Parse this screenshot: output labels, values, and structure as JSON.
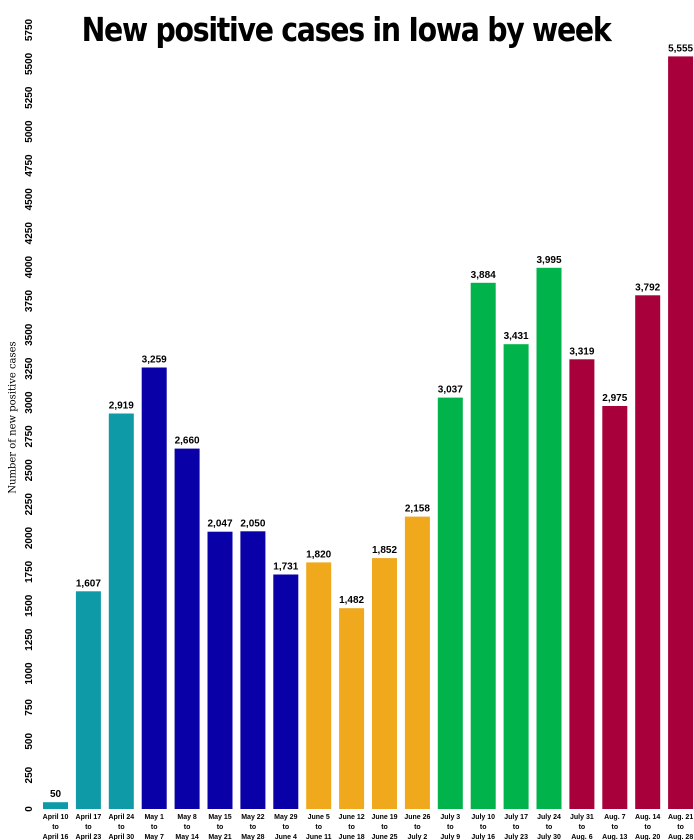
{
  "chart_data": {
    "type": "bar",
    "title": "New positive cases in Iowa by week",
    "ylabel": "Number of new positive cases",
    "xlabel": "",
    "ylim": [
      0,
      5750
    ],
    "ytick_step": 250,
    "grid": false,
    "legend": "none",
    "categories": [
      [
        "April 10",
        "to",
        "April 16"
      ],
      [
        "April 17",
        "to",
        "April 23"
      ],
      [
        "April 24",
        "to",
        "April 30"
      ],
      [
        "May 1",
        "to",
        "May 7"
      ],
      [
        "May 8",
        "to",
        "May 14"
      ],
      [
        "May 15",
        "to",
        "May 21"
      ],
      [
        "May 22",
        "to",
        "May 28"
      ],
      [
        "May 29",
        "to",
        "June 4"
      ],
      [
        "June 5",
        "to",
        "June 11"
      ],
      [
        "June 12",
        "to",
        "June 18"
      ],
      [
        "June 19",
        "to",
        "June 25"
      ],
      [
        "June 26",
        "to",
        "July 2"
      ],
      [
        "July 3",
        "to",
        "July 9"
      ],
      [
        "July 10",
        "to",
        "July 16"
      ],
      [
        "July 17",
        "to",
        "July 23"
      ],
      [
        "July 24",
        "to",
        "July 30"
      ],
      [
        "July 31",
        "to",
        "Aug. 6"
      ],
      [
        "Aug. 7",
        "to",
        "Aug. 13"
      ],
      [
        "Aug. 14",
        "to",
        "Aug. 20"
      ],
      [
        "Aug. 21",
        "to",
        "Aug. 28"
      ]
    ],
    "values": [
      50,
      1607,
      2919,
      3259,
      2660,
      2047,
      2050,
      1731,
      1820,
      1482,
      1852,
      2158,
      3037,
      3884,
      3431,
      3995,
      3319,
      2975,
      3792,
      5555
    ],
    "value_labels": [
      "50",
      "1,607",
      "2,919",
      "3,259",
      "2,660",
      "2,047",
      "2,050",
      "1,731",
      "1,820",
      "1,482",
      "1,852",
      "2,158",
      "3,037",
      "3,884",
      "3,431",
      "3,995",
      "3,319",
      "2,975",
      "3,792",
      "5,555"
    ],
    "bar_colors": [
      "#0e9aa7",
      "#0e9aa7",
      "#0e9aa7",
      "#0a00a8",
      "#0a00a8",
      "#0a00a8",
      "#0a00a8",
      "#0a00a8",
      "#f0a81c",
      "#f0a81c",
      "#f0a81c",
      "#f0a81c",
      "#00b34a",
      "#00b34a",
      "#00b34a",
      "#00b34a",
      "#a8003a",
      "#a8003a",
      "#a8003a",
      "#a8003a"
    ]
  }
}
